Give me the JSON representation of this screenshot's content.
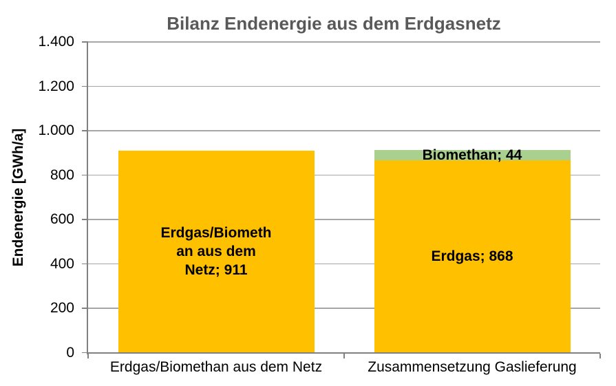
{
  "chart_data": {
    "type": "bar",
    "stacked": true,
    "title": "Bilanz Endenergie aus dem Erdgasnetz",
    "xlabel": "",
    "ylabel": "Endenergie [GWh/a]",
    "ylim": [
      0,
      1400
    ],
    "yticks": [
      0,
      200,
      400,
      600,
      800,
      1000,
      1200,
      1400
    ],
    "ytick_labels": [
      "0",
      "200",
      "400",
      "600",
      "800",
      "1.000",
      "1.200",
      "1.400"
    ],
    "grid": true,
    "legend_position": "none",
    "categories": [
      "Erdgas/Biomethan aus dem Netz",
      "Zusammensetzung Gaslieferung"
    ],
    "bars": [
      {
        "category": "Erdgas/Biomethan aus dem Netz",
        "total": 911,
        "segments": [
          {
            "name": "Erdgas/Biomethan aus dem Netz",
            "value": 911,
            "color": "#FFC000",
            "label_lines": [
              "Erdgas/Biometh",
              "an aus dem",
              "Netz; 911"
            ]
          }
        ]
      },
      {
        "category": "Zusammensetzung Gaslieferung",
        "total": 912,
        "segments": [
          {
            "name": "Erdgas",
            "value": 868,
            "color": "#FFC000",
            "label_lines": [
              "Erdgas; 868"
            ]
          },
          {
            "name": "Biomethan",
            "value": 44,
            "color": "#A9D08E",
            "label_lines": [
              "Biomethan; 44"
            ]
          }
        ]
      }
    ],
    "colors": {
      "title": "#595959",
      "gridline": "#A6A6A6",
      "axis": "#808080",
      "erdgas_yellow": "#FFC000",
      "biomethan_green": "#A9D08E",
      "text": "#000000",
      "background": "#FFFFFF"
    }
  }
}
